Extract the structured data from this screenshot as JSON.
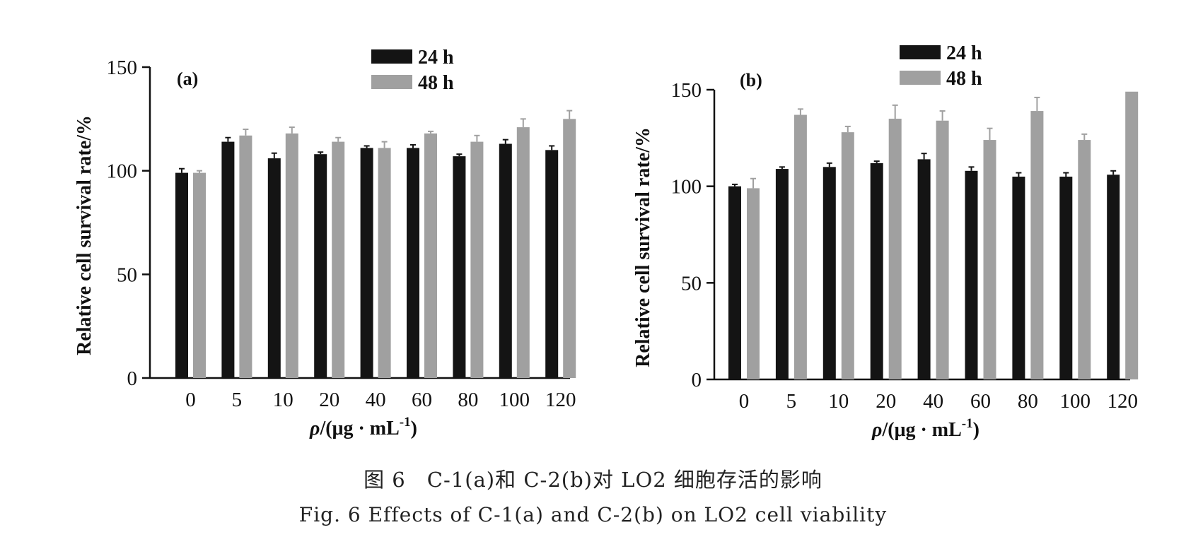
{
  "caption": {
    "cn": "图 6　C-1(a)和 C-2(b)对 LO2 细胞存活的影响",
    "en": "Fig. 6  Effects of C-1(a) and C-2(b) on LO2 cell viability"
  },
  "colors": {
    "h24": "#141414",
    "h48": "#a0a0a0",
    "axis": "#111111"
  },
  "chart_data": [
    {
      "type": "bar",
      "panel_label": "(a)",
      "categories": [
        "0",
        "5",
        "10",
        "20",
        "40",
        "60",
        "80",
        "100",
        "120"
      ],
      "xlabel_italic": "ρ",
      "xlabel_rest": "/(μg · mL",
      "xlabel_sup": "-1",
      "xlabel_close": ")",
      "ylabel": "Relative cell survival rate/%",
      "ylim": [
        0,
        150
      ],
      "yticks": [
        "0",
        "50",
        "100",
        "150"
      ],
      "legend": "top-center",
      "series": [
        {
          "name": "24 h",
          "values": [
            99,
            114,
            106,
            108,
            111,
            111,
            107,
            113,
            110
          ],
          "errors": [
            2,
            2,
            2.5,
            1,
            1,
            1.5,
            1,
            2,
            2
          ]
        },
        {
          "name": "48 h",
          "values": [
            99,
            117,
            118,
            114,
            111,
            118,
            114,
            121,
            125
          ],
          "errors": [
            1,
            3,
            3,
            2,
            3,
            1,
            3,
            4,
            4
          ]
        }
      ]
    },
    {
      "type": "bar",
      "panel_label": "(b)",
      "categories": [
        "0",
        "5",
        "10",
        "20",
        "40",
        "60",
        "80",
        "100",
        "120"
      ],
      "xlabel_italic": "ρ",
      "xlabel_rest": "/(μg · mL",
      "xlabel_sup": "-1",
      "xlabel_close": ")",
      "ylabel": "Relative cell survival rate/%",
      "ylim": [
        0,
        150
      ],
      "yticks": [
        "0",
        "50",
        "100",
        "150"
      ],
      "legend": "top-center",
      "series": [
        {
          "name": "24 h",
          "values": [
            100,
            109,
            110,
            112,
            114,
            108,
            105,
            105,
            106
          ],
          "errors": [
            1,
            1,
            2,
            1,
            3,
            2,
            2,
            2,
            2
          ]
        },
        {
          "name": "48 h",
          "values": [
            99,
            137,
            128,
            135,
            134,
            124,
            139,
            124,
            149
          ],
          "errors": [
            5,
            3,
            3,
            7,
            5,
            6,
            7,
            3,
            0
          ]
        }
      ]
    }
  ]
}
